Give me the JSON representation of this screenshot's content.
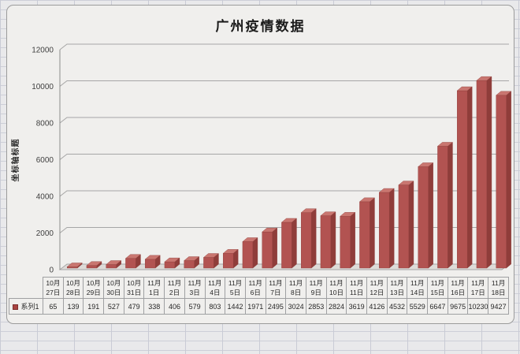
{
  "chart": {
    "title": "广州疫情数据",
    "y_axis_title": "坐标轴标题",
    "legend_label": "系列1"
  },
  "chart_data": {
    "type": "bar",
    "style": "3d-column",
    "title": "广州疫情数据",
    "xlabel": "",
    "ylabel": "坐标轴标题",
    "ylim": [
      0,
      12000
    ],
    "y_ticks": [
      0,
      2000,
      4000,
      6000,
      8000,
      10000,
      12000
    ],
    "grid": true,
    "legend_position": "data-table-left",
    "categories": [
      "10月27日",
      "10月28日",
      "10月29日",
      "10月30日",
      "10月31日",
      "11月1日",
      "11月2日",
      "11月3日",
      "11月4日",
      "11月5日",
      "11月6日",
      "11月7日",
      "11月8日",
      "11月9日",
      "11月10日",
      "11月11日",
      "11月12日",
      "11月13日",
      "11月14日",
      "11月15日",
      "11月16日",
      "11月17日",
      "11月18日"
    ],
    "series": [
      {
        "name": "系列1",
        "values": [
          65,
          139,
          191,
          527,
          479,
          338,
          406,
          579,
          803,
          1442,
          1971,
          2495,
          3024,
          2853,
          2824,
          3619,
          4126,
          4532,
          5529,
          6647,
          9675,
          10230,
          9427
        ]
      }
    ],
    "colors": {
      "bar_front": "#b25351",
      "bar_top": "#c97670",
      "bar_side": "#8f3d3a",
      "gridline": "#a6a6a6",
      "axis": "#8c8c8c",
      "floor_fill": "#dddbd8",
      "chart_background": "#f0efed",
      "sheet_background": "#e9e9eb",
      "sheet_gridline": "#c9cbd5",
      "table_border": "#9fa0a2",
      "legend_marker": "#a94441",
      "text": "#262626"
    }
  }
}
